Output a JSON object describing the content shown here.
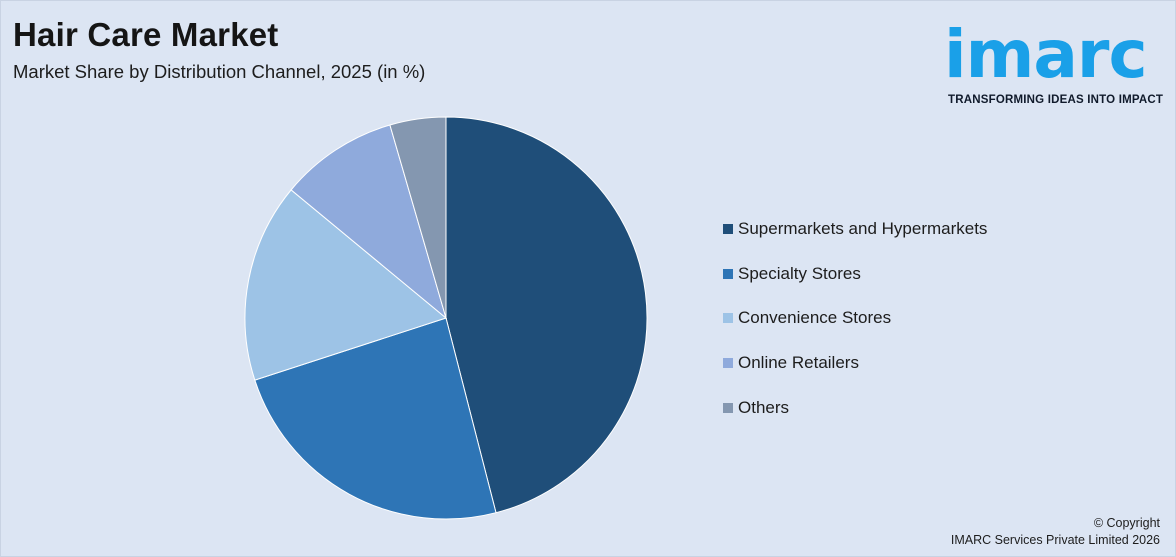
{
  "header": {
    "title": "Hair Care Market",
    "subtitle": "Market Share by Distribution Channel, 2025 (in %)"
  },
  "logo": {
    "word": "imarc",
    "tagline": "TRANSFORMING IDEAS INTO IMPACT",
    "color": "#1aa0e8"
  },
  "chart_data": {
    "type": "pie",
    "title": "Hair Care Market",
    "subtitle": "Market Share by Distribution Channel, 2025 (in %)",
    "categories": [
      "Supermarkets and Hypermarkets",
      "Specialty Stores",
      "Convenience Stores",
      "Online Retailers",
      "Others"
    ],
    "values": [
      46,
      24,
      16,
      9.5,
      4.5
    ],
    "colors": [
      "#1f4e79",
      "#2e75b6",
      "#9dc3e6",
      "#8faadc",
      "#8497b0"
    ],
    "legend_position": "right",
    "start_angle_deg": 0,
    "direction": "clockwise"
  },
  "footer": {
    "copyright_line1": "© Copyright",
    "copyright_line2": "IMARC Services Private Limited 2026"
  }
}
